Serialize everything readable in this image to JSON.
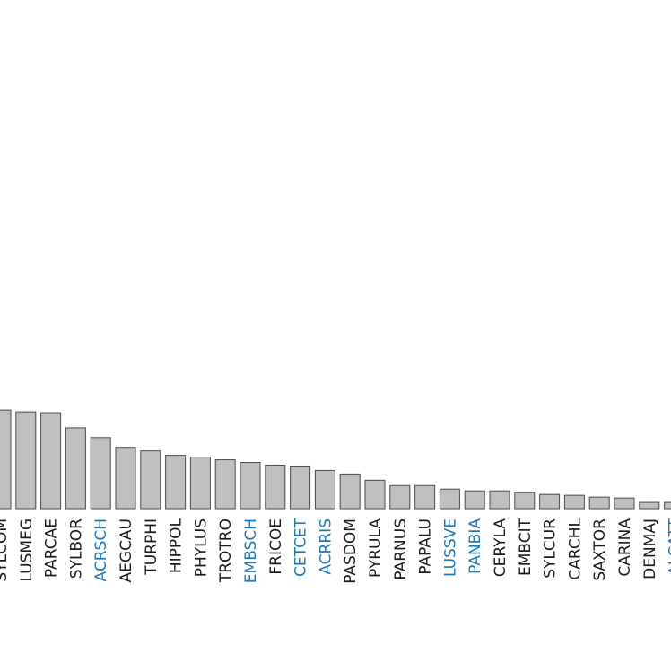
{
  "chart_data": {
    "type": "bar",
    "categories": [
      "SYLCOM",
      "LUSMEG",
      "PARCAE",
      "SYLBOR",
      "ACRSCH",
      "AEGCAU",
      "TURPHI",
      "HIPPOL",
      "PHYLUS",
      "TROTRO",
      "EMBSCH",
      "FRICOE",
      "CETCET",
      "ACRRIS",
      "PASDOM",
      "PYRULA",
      "PARNUS",
      "PAPALU",
      "LUSSVE",
      "PANBIA",
      "CERYLA",
      "EMBCIT",
      "SYLCUR",
      "CARCHL",
      "SAXTOR",
      "CARINA",
      "DENMAJ",
      "ALCATT"
    ],
    "values": [
      111,
      109,
      108,
      91,
      80,
      69,
      65,
      60,
      58,
      55,
      52,
      49,
      47,
      43,
      39,
      32,
      26,
      26,
      22,
      20,
      20,
      18,
      16,
      15,
      13,
      12,
      7,
      7
    ],
    "label_colors": [
      "#1a1a1a",
      "#1a1a1a",
      "#1a1a1a",
      "#1a1a1a",
      "#1f77b4",
      "#1a1a1a",
      "#1a1a1a",
      "#1a1a1a",
      "#1a1a1a",
      "#1a1a1a",
      "#1f77b4",
      "#1a1a1a",
      "#1f77b4",
      "#1f77b4",
      "#1a1a1a",
      "#1a1a1a",
      "#1a1a1a",
      "#1a1a1a",
      "#1f77b4",
      "#1f77b4",
      "#1a1a1a",
      "#1a1a1a",
      "#1a1a1a",
      "#1a1a1a",
      "#1a1a1a",
      "#1a1a1a",
      "#1a1a1a",
      "#1f77b4"
    ],
    "colors": {
      "bar_fill": "#c0c0c0",
      "bar_stroke": "#4a4a4a",
      "label_default": "#1a1a1a",
      "label_highlight": "#1f77b4"
    },
    "title": "",
    "xlabel": "",
    "ylabel": "",
    "grid": false,
    "ylim": [
      0,
      111
    ]
  }
}
